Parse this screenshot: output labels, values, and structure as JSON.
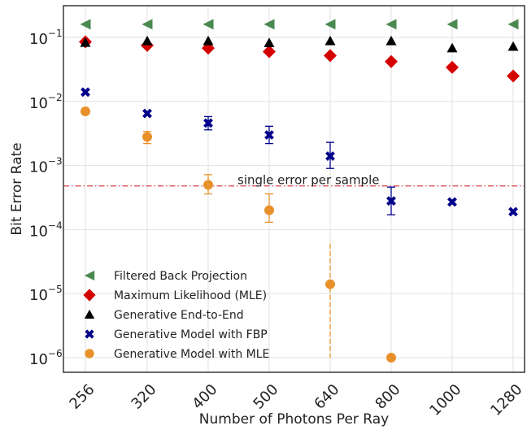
{
  "chart_data": {
    "type": "scatter",
    "xlabel": "Number of Photons Per Ray",
    "ylabel": "Bit Error Rate",
    "x_scale": "categorical",
    "y_scale": "log",
    "ylim": [
      5e-07,
      0.15
    ],
    "grid": true,
    "legend_position": "lower-left",
    "categories": [
      "256",
      "320",
      "400",
      "500",
      "640",
      "800",
      "1000",
      "1280"
    ],
    "y_ticks": [
      {
        "value": 0.1,
        "base": "10",
        "exp": "−1"
      },
      {
        "value": 0.01,
        "base": "10",
        "exp": "−2"
      },
      {
        "value": 0.001,
        "base": "10",
        "exp": "−3"
      },
      {
        "value": 0.0001,
        "base": "10",
        "exp": "−4"
      },
      {
        "value": 1e-05,
        "base": "10",
        "exp": "−5"
      },
      {
        "value": 1e-06,
        "base": "10",
        "exp": "−6"
      }
    ],
    "series": [
      {
        "name": "Filtered Back Projection",
        "marker": "triangle-left",
        "color": "#4a8a50",
        "values": [
          0.16,
          0.16,
          0.16,
          0.16,
          0.16,
          0.16,
          0.16,
          0.16
        ]
      },
      {
        "name": "Maximum Likelihood (MLE)",
        "marker": "diamond",
        "color": "#d40000",
        "values": [
          0.085,
          0.075,
          0.068,
          0.06,
          0.052,
          0.042,
          0.034,
          0.025
        ]
      },
      {
        "name": "Generative End-to-End",
        "marker": "triangle-up",
        "color": "#000000",
        "values": [
          0.083,
          0.088,
          0.088,
          0.082,
          0.088,
          0.088,
          0.068,
          0.072
        ]
      },
      {
        "name": "Generative Model with FBP",
        "marker": "x",
        "color": "#00008b",
        "values": [
          0.014,
          0.0065,
          0.0046,
          0.003,
          0.0014,
          0.00028,
          0.00027,
          0.00019
        ],
        "errors": [
          null,
          null,
          [
            0.0036,
            0.0058
          ],
          [
            0.0022,
            0.0041
          ],
          [
            0.0009,
            0.0023
          ],
          [
            0.00017,
            0.00046
          ],
          null,
          null
        ]
      },
      {
        "name": "Generative Model with MLE",
        "marker": "circle",
        "color": "#e8912a",
        "values": [
          0.007,
          0.0028,
          0.0005,
          0.0002,
          1.4e-05,
          1e-06,
          null,
          null
        ],
        "errors": [
          null,
          [
            0.0022,
            0.0034
          ],
          [
            0.00036,
            0.00072
          ],
          [
            0.00013,
            0.00036
          ],
          [
            1e-06,
            6e-05
          ],
          null,
          null,
          null
        ]
      }
    ],
    "reference_line": {
      "label": "single error per sample",
      "value": 0.00048,
      "color": "#d94040",
      "style": "dash-dot"
    }
  }
}
